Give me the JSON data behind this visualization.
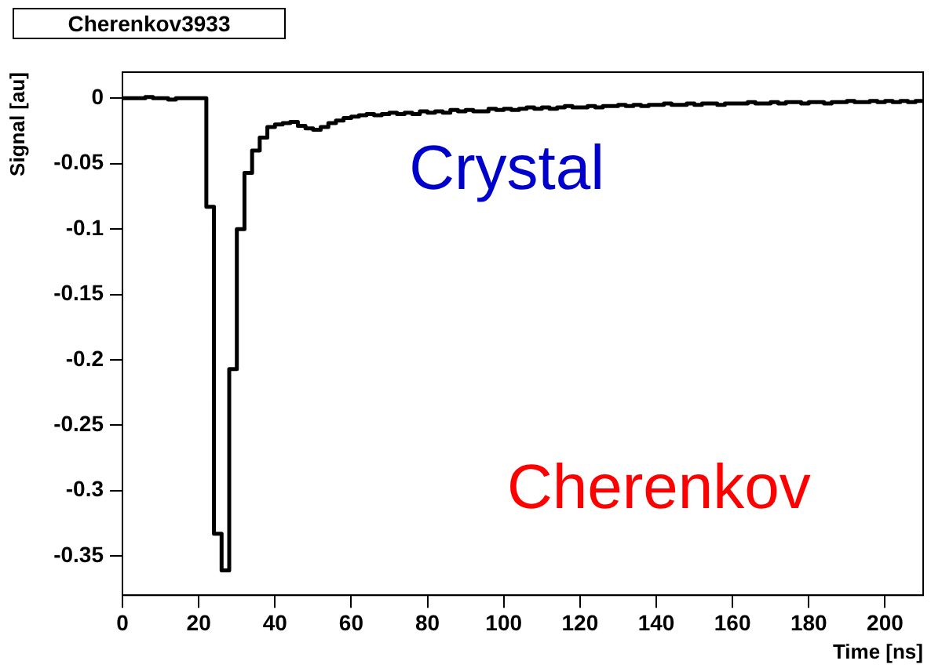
{
  "chart_data": {
    "type": "histogram",
    "title": "Cherenkov3933",
    "xlabel": "Time [ns]",
    "ylabel": "Signal [au]",
    "bins": [
      0,
      2,
      4,
      6,
      8,
      10,
      12,
      14,
      16,
      18,
      20,
      22,
      24,
      26,
      28,
      30,
      32,
      34,
      36,
      38,
      40,
      42,
      44,
      46,
      48,
      50,
      52,
      54,
      56,
      58,
      60,
      62,
      64,
      66,
      68,
      70,
      72,
      74,
      76,
      78,
      80,
      82,
      84,
      86,
      88,
      90,
      92,
      94,
      96,
      98,
      100,
      102,
      104,
      106,
      108,
      110,
      112,
      114,
      116,
      118,
      120,
      122,
      124,
      126,
      128,
      130,
      132,
      134,
      136,
      138,
      140,
      142,
      144,
      146,
      148,
      150,
      152,
      154,
      156,
      158,
      160,
      162,
      164,
      166,
      168,
      170,
      172,
      174,
      176,
      178,
      180,
      182,
      184,
      186,
      188,
      190,
      192,
      194,
      196,
      198,
      200,
      202,
      204,
      206,
      208,
      210
    ],
    "values": [
      0,
      0,
      0,
      0.001,
      0,
      0,
      -0.001,
      0,
      0,
      0,
      0,
      -0.083,
      -0.333,
      -0.361,
      -0.207,
      -0.1,
      -0.057,
      -0.04,
      -0.03,
      -0.022,
      -0.02,
      -0.019,
      -0.018,
      -0.021,
      -0.023,
      -0.024,
      -0.022,
      -0.019,
      -0.017,
      -0.015,
      -0.014,
      -0.013,
      -0.012,
      -0.013,
      -0.012,
      -0.011,
      -0.012,
      -0.011,
      -0.012,
      -0.01,
      -0.011,
      -0.01,
      -0.011,
      -0.009,
      -0.01,
      -0.009,
      -0.01,
      -0.01,
      -0.008,
      -0.009,
      -0.008,
      -0.009,
      -0.008,
      -0.007,
      -0.008,
      -0.007,
      -0.008,
      -0.007,
      -0.006,
      -0.007,
      -0.007,
      -0.006,
      -0.007,
      -0.006,
      -0.006,
      -0.005,
      -0.006,
      -0.005,
      -0.006,
      -0.005,
      -0.005,
      -0.004,
      -0.005,
      -0.005,
      -0.004,
      -0.005,
      -0.004,
      -0.004,
      -0.005,
      -0.004,
      -0.004,
      -0.004,
      -0.003,
      -0.004,
      -0.004,
      -0.003,
      -0.004,
      -0.003,
      -0.003,
      -0.004,
      -0.003,
      -0.003,
      -0.004,
      -0.003,
      -0.003,
      -0.002,
      -0.003,
      -0.003,
      -0.002,
      -0.003,
      -0.002,
      -0.003,
      -0.002,
      -0.003,
      -0.002
    ],
    "color": "#000000",
    "xlim": [
      0,
      210
    ],
    "xticks": [
      0,
      20,
      40,
      60,
      80,
      100,
      120,
      140,
      160,
      180,
      200
    ],
    "ylim": [
      -0.38,
      0.02
    ],
    "yticks": [
      0,
      -0.05,
      -0.1,
      -0.15,
      -0.2,
      -0.25,
      -0.3,
      -0.35
    ],
    "grid": false,
    "legend": false,
    "annotations": [
      "Crystal",
      "Cherenkov"
    ]
  }
}
